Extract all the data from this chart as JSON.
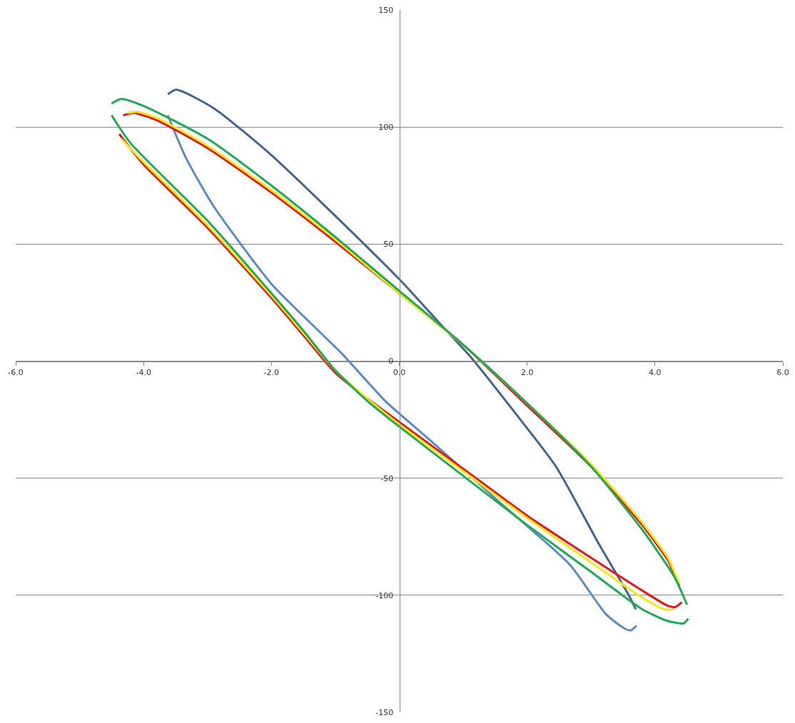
{
  "chart_data": {
    "type": "line",
    "xlim": [
      -6,
      6
    ],
    "ylim": [
      -150,
      150
    ],
    "xticks": [
      {
        "value": -6,
        "label": "-6.0"
      },
      {
        "value": -4,
        "label": "-4.0"
      },
      {
        "value": -2,
        "label": "-2.0"
      },
      {
        "value": 0,
        "label": "0.0"
      },
      {
        "value": 2,
        "label": "2.0"
      },
      {
        "value": 4,
        "label": "4.0"
      },
      {
        "value": 6,
        "label": "6.0"
      }
    ],
    "yticks": [
      -150,
      -100,
      -50,
      0,
      50,
      100,
      150
    ],
    "grid": "y",
    "marker": "none",
    "line_style": "solid",
    "series": [
      {
        "color": "#44648f",
        "x": [
          -3.62,
          -3.49,
          -2.9,
          -2.0,
          -1.0,
          0,
          0.67,
          1.11,
          1.78,
          2.45,
          3.12,
          3.57,
          3.7
        ],
        "values": [
          114,
          116,
          108,
          88,
          62,
          35,
          15,
          2,
          -21,
          -45,
          -78,
          -99,
          -106
        ]
      },
      {
        "color": "#5b8bc4",
        "x": [
          -3.62,
          -3.34,
          -2.9,
          -2.0,
          -1.34,
          -0.89,
          -0.22,
          0.45,
          1.56,
          2.67,
          3.23,
          3.51,
          3.62,
          3.71
        ],
        "values": [
          105,
          87,
          66,
          33,
          15,
          3,
          -17,
          -33,
          -60,
          -87,
          -108,
          -114,
          -115,
          -113
        ]
      },
      {
        "color": "#e8141b",
        "x": [
          -4.32,
          -4.15,
          -3.8,
          -3.0,
          -2.0,
          -1.0,
          0,
          1.0,
          2.0,
          3.0,
          3.8,
          4.2,
          4.38,
          null,
          -4.38,
          -4.0,
          -3.0,
          -2.0,
          -1.5,
          -1.0,
          -0.5,
          0,
          1.0,
          2.0,
          3.0,
          3.8,
          4.2,
          4.32,
          4.42
        ],
        "values": [
          105,
          106,
          103,
          91,
          72,
          51,
          29,
          7,
          -19,
          -45,
          -70,
          -85,
          -96,
          null,
          97,
          84,
          57,
          27,
          11,
          -5,
          -16,
          -26,
          -46,
          -66,
          -84,
          -98,
          -104.5,
          -105,
          -103
        ]
      },
      {
        "color": "#f5e71a",
        "x": [
          -4.25,
          -4.1,
          -3.8,
          -3.0,
          -2.0,
          -1.0,
          0,
          1.0,
          2.0,
          3.0,
          3.8,
          4.2,
          4.38,
          null,
          -4.35,
          -4.0,
          -3.0,
          -2.0,
          -1.5,
          -1.0,
          -0.5,
          0,
          1.0,
          2.0,
          3.0,
          3.8,
          4.15,
          4.3
        ],
        "values": [
          106,
          106.5,
          104,
          92,
          73,
          52,
          29,
          7,
          -18,
          -44,
          -69,
          -84,
          -95,
          null,
          95,
          85,
          58,
          28,
          12,
          -4,
          -16,
          -27,
          -47,
          -67,
          -86,
          -101,
          -106,
          -106
        ]
      },
      {
        "color": "#1faa55",
        "x": [
          -4.5,
          -4.35,
          -4.0,
          -3.0,
          -2.0,
          -1.0,
          0,
          1.0,
          2.0,
          3.0,
          3.8,
          4.3,
          4.5,
          null,
          -4.5,
          -4.2,
          -3.0,
          -2.0,
          -1.5,
          -1.0,
          -0.5,
          0,
          1.0,
          2.0,
          3.0,
          3.8,
          4.2,
          4.45,
          4.52
        ],
        "values": [
          110,
          112,
          109,
          95,
          75,
          53,
          30,
          7,
          -18,
          -45,
          -72,
          -92,
          -104,
          null,
          105,
          93,
          60,
          29,
          13,
          -4,
          -17,
          -28,
          -49,
          -70,
          -90,
          -106,
          -111,
          -112,
          -110
        ]
      }
    ]
  }
}
